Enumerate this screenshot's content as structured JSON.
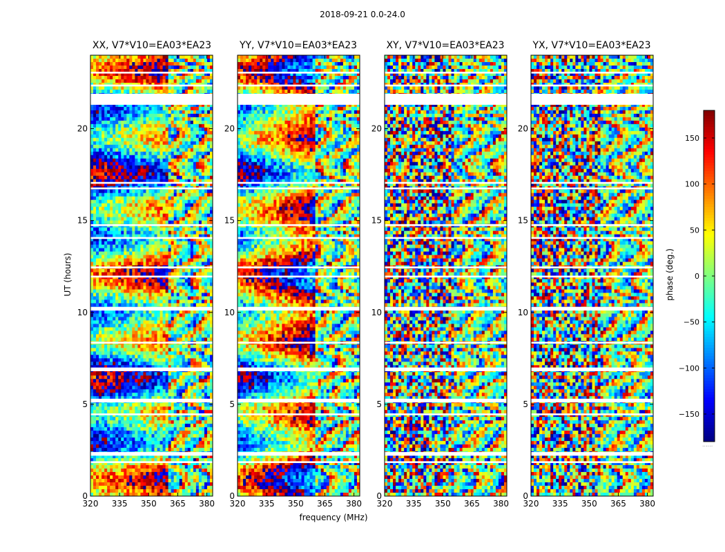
{
  "chart_data": {
    "type": "heatmap",
    "suptitle": "2018-09-21 0.0-24.0",
    "xlabel": "frequency (MHz)",
    "ylabel": "UT (hours)",
    "xlim": [
      320,
      383
    ],
    "ylim": [
      0,
      24
    ],
    "xticks": [
      320,
      335,
      350,
      365,
      380
    ],
    "yticks": [
      0,
      5,
      10,
      15,
      20
    ],
    "colorbar": {
      "label": "phase (deg.)",
      "range": [
        -180,
        180
      ],
      "ticks": [
        150,
        100,
        50,
        0,
        -50,
        -100,
        -150
      ],
      "tick_labels": [
        "150",
        "100",
        "50",
        "0",
        "−50",
        "−100",
        "−150"
      ],
      "colormap": "jet",
      "footer": "......"
    },
    "panels": [
      {
        "title": "XX, V7*V10=EA03*EA23",
        "polarization": "XX",
        "baseline": "V7*V10",
        "antennas": "EA03*EA23"
      },
      {
        "title": "YY, V7*V10=EA03*EA23",
        "polarization": "YY",
        "baseline": "V7*V10",
        "antennas": "EA03*EA23"
      },
      {
        "title": "XY, V7*V10=EA03*EA23",
        "polarization": "XY",
        "baseline": "V7*V10",
        "antennas": "EA03*EA23"
      },
      {
        "title": "YX, V7*V10=EA03*EA23",
        "polarization": "YX",
        "baseline": "V7*V10",
        "antennas": "EA03*EA23"
      }
    ],
    "flagged_hours": [
      [
        21.3,
        21.9
      ],
      [
        23.0,
        23.1
      ],
      [
        22.3,
        22.4
      ],
      [
        17.0,
        17.1
      ],
      [
        16.7,
        16.8
      ],
      [
        14.7,
        14.8
      ],
      [
        14.0,
        14.1
      ],
      [
        12.4,
        12.5
      ],
      [
        11.9,
        12.0
      ],
      [
        10.1,
        10.3
      ],
      [
        8.3,
        8.4
      ],
      [
        6.8,
        7.0
      ],
      [
        5.1,
        5.3
      ],
      [
        4.4,
        4.5
      ],
      [
        2.2,
        2.4
      ],
      [
        1.8,
        1.9
      ]
    ]
  }
}
